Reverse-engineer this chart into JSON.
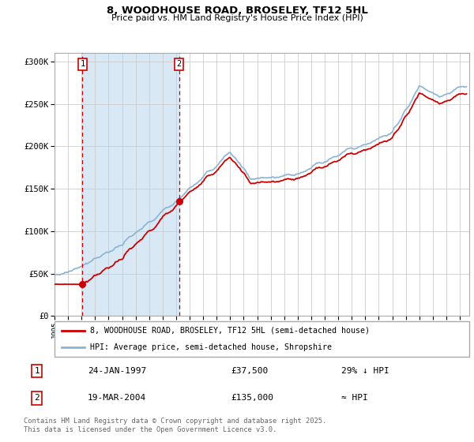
{
  "title1": "8, WOODHOUSE ROAD, BROSELEY, TF12 5HL",
  "title2": "Price paid vs. HM Land Registry's House Price Index (HPI)",
  "ylabel_ticks": [
    "£0",
    "£50K",
    "£100K",
    "£150K",
    "£200K",
    "£250K",
    "£300K"
  ],
  "ytick_vals": [
    0,
    50000,
    100000,
    150000,
    200000,
    250000,
    300000
  ],
  "ylim": [
    0,
    310000
  ],
  "sale1_date": "24-JAN-1997",
  "sale1_price": 37500,
  "sale1_label": "29% ↓ HPI",
  "sale2_date": "19-MAR-2004",
  "sale2_price": 135000,
  "sale2_label": "≈ HPI",
  "legend1": "8, WOODHOUSE ROAD, BROSELEY, TF12 5HL (semi-detached house)",
  "legend2": "HPI: Average price, semi-detached house, Shropshire",
  "footer": "Contains HM Land Registry data © Crown copyright and database right 2025.\nThis data is licensed under the Open Government Licence v3.0.",
  "hpi_color": "#8AB4D4",
  "red_color": "#CC0000",
  "bg_shade_color": "#D8E8F4",
  "grid_color": "#CCCCCC",
  "sale1_x": 1997.07,
  "sale2_x": 2004.22,
  "xtick_start": 1995,
  "xtick_end": 2026
}
